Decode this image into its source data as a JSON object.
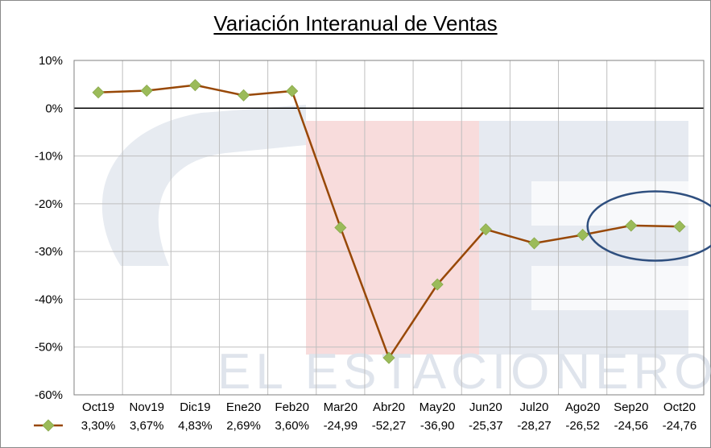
{
  "chart_data": {
    "type": "line",
    "title": "Variación Interanual de Ventas",
    "xlabel": "",
    "ylabel": "",
    "categories": [
      "Oct19",
      "Nov19",
      "Dic19",
      "Ene20",
      "Feb20",
      "Mar20",
      "Abr20",
      "May20",
      "Jun20",
      "Jul20",
      "Ago20",
      "Sep20",
      "Oct20"
    ],
    "series": [
      {
        "values": [
          3.3,
          3.67,
          4.83,
          2.69,
          3.6,
          -24.99,
          -52.27,
          -36.9,
          -25.37,
          -28.27,
          -26.52,
          -24.56,
          -24.76
        ],
        "color": "#984807",
        "marker_color": "#9bbb59"
      }
    ],
    "data_table_labels": [
      "3,30%",
      "3,67%",
      "4,83%",
      "2,69%",
      "3,60%",
      "-24,99",
      "-52,27",
      "-36,90",
      "-25,37",
      "-28,27",
      "-26,52",
      "-24,56",
      "-24,76"
    ],
    "y_ticks": [
      "10%",
      "0%",
      "-10%",
      "-20%",
      "-30%",
      "-40%",
      "-50%",
      "-60%"
    ],
    "y_tick_values": [
      10,
      0,
      -10,
      -20,
      -30,
      -40,
      -50,
      -60
    ],
    "ylim": [
      -60,
      10
    ],
    "grid": true,
    "highlight": {
      "shape": "ellipse",
      "color": "#2f4f7f",
      "categories": [
        "Sep20",
        "Oct20"
      ]
    },
    "legend": "data-table-bottom",
    "watermark": "EL ESTACIONERO"
  }
}
